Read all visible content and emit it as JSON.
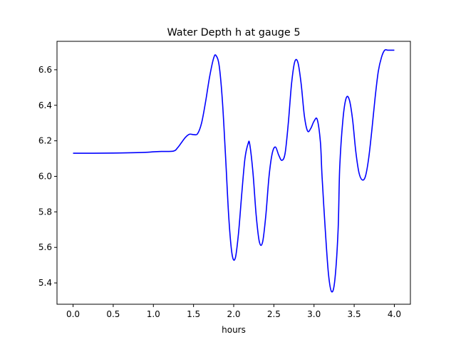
{
  "chart_data": {
    "type": "line",
    "title": "Water Depth h at gauge 5",
    "xlabel": "hours",
    "ylabel": "",
    "xlim": [
      -0.2,
      4.2
    ],
    "ylim": [
      5.28,
      6.76
    ],
    "xticks": [
      0.0,
      0.5,
      1.0,
      1.5,
      2.0,
      2.5,
      3.0,
      3.5,
      4.0
    ],
    "xtick_labels": [
      "0.0",
      "0.5",
      "1.0",
      "1.5",
      "2.0",
      "2.5",
      "3.0",
      "3.5",
      "4.0"
    ],
    "yticks": [
      5.4,
      5.6,
      5.8,
      6.0,
      6.2,
      6.4,
      6.6
    ],
    "ytick_labels": [
      "5.4",
      "5.6",
      "5.8",
      "6.0",
      "6.2",
      "6.4",
      "6.6"
    ],
    "grid": false,
    "series": [
      {
        "color": "#0000ff",
        "x": [
          0.0,
          0.25,
          0.5,
          0.75,
          0.9,
          1.0,
          1.1,
          1.25,
          1.3,
          1.35,
          1.4,
          1.45,
          1.5,
          1.55,
          1.6,
          1.65,
          1.7,
          1.75,
          1.78,
          1.82,
          1.86,
          1.9,
          1.94,
          1.98,
          2.02,
          2.06,
          2.1,
          2.14,
          2.18,
          2.2,
          2.24,
          2.28,
          2.32,
          2.36,
          2.4,
          2.44,
          2.48,
          2.52,
          2.56,
          2.6,
          2.64,
          2.68,
          2.72,
          2.76,
          2.8,
          2.84,
          2.88,
          2.92,
          2.96,
          3.0,
          3.04,
          3.08,
          3.1,
          3.14,
          3.18,
          3.22,
          3.26,
          3.3,
          3.32,
          3.36,
          3.4,
          3.44,
          3.48,
          3.52,
          3.56,
          3.6,
          3.64,
          3.68,
          3.72,
          3.76,
          3.8,
          3.84,
          3.88,
          3.92,
          3.96,
          4.0
        ],
        "y": [
          6.13,
          6.13,
          6.131,
          6.133,
          6.135,
          6.138,
          6.14,
          6.142,
          6.16,
          6.19,
          6.22,
          6.237,
          6.235,
          6.24,
          6.3,
          6.42,
          6.56,
          6.665,
          6.68,
          6.62,
          6.42,
          6.1,
          5.76,
          5.56,
          5.54,
          5.68,
          5.9,
          6.1,
          6.185,
          6.18,
          6.02,
          5.78,
          5.63,
          5.63,
          5.78,
          6.0,
          6.13,
          6.165,
          6.12,
          6.09,
          6.13,
          6.3,
          6.52,
          6.645,
          6.64,
          6.52,
          6.34,
          6.255,
          6.27,
          6.31,
          6.32,
          6.19,
          6.0,
          5.7,
          5.45,
          5.35,
          5.42,
          5.7,
          6.05,
          6.32,
          6.44,
          6.43,
          6.32,
          6.14,
          6.02,
          5.98,
          6.0,
          6.1,
          6.26,
          6.44,
          6.59,
          6.67,
          6.71,
          6.71,
          6.71,
          6.71
        ]
      }
    ]
  }
}
